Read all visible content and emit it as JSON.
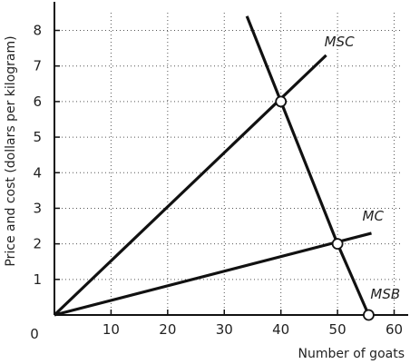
{
  "chart_data": {
    "type": "line",
    "xlabel": "Number of goats",
    "ylabel": "Price and cost (dollars per kilogram)",
    "origin_label": "0",
    "xlim": [
      0,
      62
    ],
    "ylim": [
      0,
      8.6
    ],
    "x_ticks": [
      10,
      20,
      30,
      40,
      50,
      60
    ],
    "y_ticks": [
      1,
      2,
      3,
      4,
      5,
      6,
      7,
      8
    ],
    "grid": true,
    "grid_style": "dotted",
    "line_color": "#111111",
    "grid_color": "#555555",
    "series": [
      {
        "name": "MSC",
        "points": [
          [
            0,
            0
          ],
          [
            48,
            7.3
          ]
        ]
      },
      {
        "name": "MC",
        "points": [
          [
            0,
            0
          ],
          [
            56,
            2.3
          ]
        ]
      },
      {
        "name": "MSB",
        "points": [
          [
            34,
            8.4
          ],
          [
            40,
            6
          ],
          [
            50,
            2
          ],
          [
            55.5,
            0
          ]
        ]
      }
    ],
    "highlighted_points": [
      [
        40,
        6
      ],
      [
        50,
        2
      ],
      [
        55.5,
        0
      ]
    ]
  }
}
